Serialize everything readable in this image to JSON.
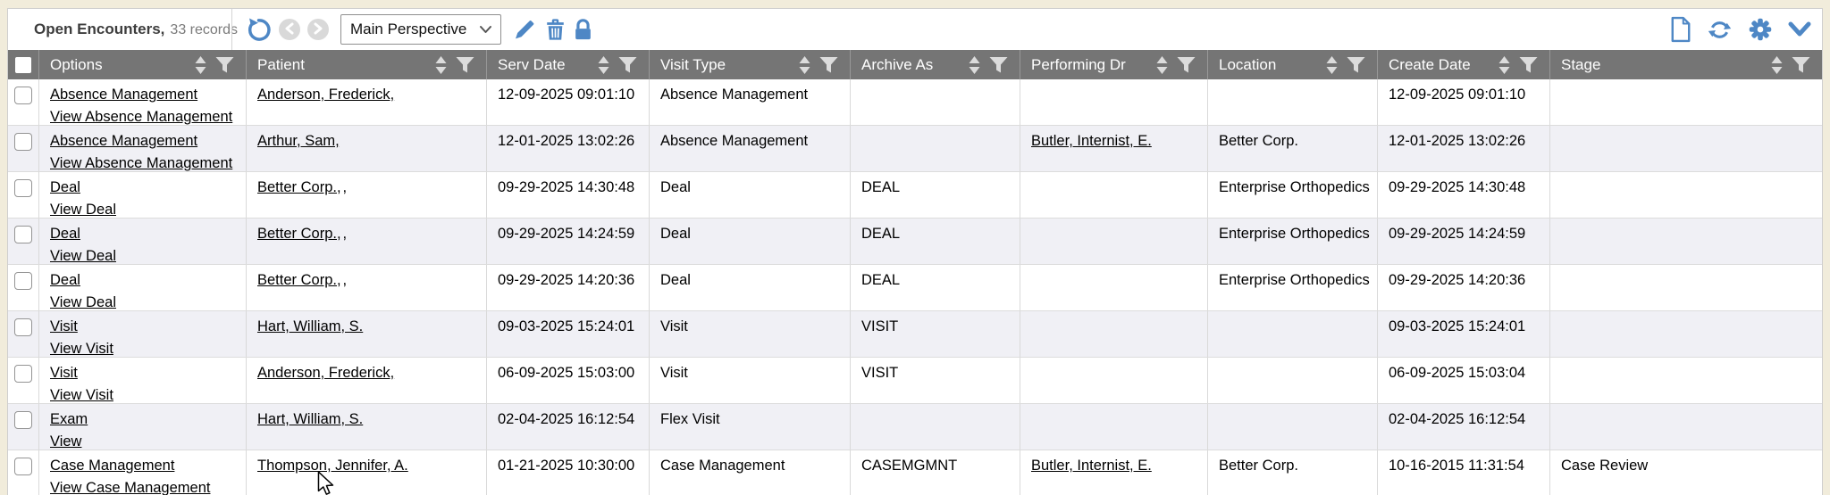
{
  "colors": {
    "accent_blue": "#4e87c5",
    "header_bg": "#757575",
    "row_alt_bg": "#f0f0f5",
    "page_bg": "#f1ecdb",
    "disabled_gray": "#d9d9d9"
  },
  "toolbar": {
    "title": "Open Encounters,",
    "record_count": "33 records",
    "perspective": {
      "selected": "Main Perspective"
    },
    "icons": {
      "reset": "reset-circular-arrow",
      "previous": "chevron-left-circle (disabled)",
      "next": "chevron-right-circle (disabled)",
      "edit": "pencil",
      "delete": "trash",
      "lock": "padlock",
      "new_document": "blank-page",
      "refresh": "circular-arrows",
      "settings": "gear",
      "collapse": "chevron-down"
    }
  },
  "table": {
    "columns": [
      {
        "key": "options",
        "label": "Options"
      },
      {
        "key": "patient",
        "label": "Patient"
      },
      {
        "key": "serv_date",
        "label": "Serv Date"
      },
      {
        "key": "visit_type",
        "label": "Visit Type"
      },
      {
        "key": "archive_as",
        "label": "Archive As"
      },
      {
        "key": "performing_dr",
        "label": "Performing Dr"
      },
      {
        "key": "location",
        "label": "Location"
      },
      {
        "key": "create_date",
        "label": "Create Date"
      },
      {
        "key": "stage",
        "label": "Stage"
      }
    ],
    "rows": [
      {
        "options_link": "Absence Management",
        "view_link": "View Absence Management",
        "patient": "Anderson, Frederick,",
        "patient_suffix": "",
        "serv_date": "12-09-2025 09:01:10",
        "visit_type": "Absence Management",
        "archive_as": "",
        "performing_dr": "",
        "location": "",
        "create_date": "12-09-2025 09:01:10",
        "stage": ""
      },
      {
        "options_link": "Absence Management",
        "view_link": "View Absence Management",
        "patient": "Arthur, Sam,",
        "patient_suffix": "",
        "serv_date": "12-01-2025 13:02:26",
        "visit_type": "Absence Management",
        "archive_as": "",
        "performing_dr": "Butler, Internist, E.",
        "location": "Better Corp.",
        "create_date": "12-01-2025 13:02:26",
        "stage": ""
      },
      {
        "options_link": "Deal",
        "view_link": "View Deal",
        "patient": "Better Corp.,",
        "patient_suffix": ",",
        "serv_date": "09-29-2025 14:30:48",
        "visit_type": "Deal",
        "archive_as": "DEAL",
        "performing_dr": "",
        "location": "Enterprise Orthopedics",
        "create_date": "09-29-2025 14:30:48",
        "stage": ""
      },
      {
        "options_link": "Deal",
        "view_link": "View Deal",
        "patient": "Better Corp.,",
        "patient_suffix": ",",
        "serv_date": "09-29-2025 14:24:59",
        "visit_type": "Deal",
        "archive_as": "DEAL",
        "performing_dr": "",
        "location": "Enterprise Orthopedics",
        "create_date": "09-29-2025 14:24:59",
        "stage": ""
      },
      {
        "options_link": "Deal",
        "view_link": "View Deal",
        "patient": "Better Corp.,",
        "patient_suffix": ",",
        "serv_date": "09-29-2025 14:20:36",
        "visit_type": "Deal",
        "archive_as": "DEAL",
        "performing_dr": "",
        "location": "Enterprise Orthopedics",
        "create_date": "09-29-2025 14:20:36",
        "stage": ""
      },
      {
        "options_link": "Visit",
        "view_link": "View Visit",
        "patient": "Hart, William, S.",
        "patient_suffix": "",
        "serv_date": "09-03-2025 15:24:01",
        "visit_type": "Visit",
        "archive_as": "VISIT",
        "performing_dr": "",
        "location": "",
        "create_date": "09-03-2025 15:24:01",
        "stage": ""
      },
      {
        "options_link": "Visit",
        "view_link": "View Visit",
        "patient": "Anderson, Frederick,",
        "patient_suffix": "",
        "serv_date": "06-09-2025 15:03:00",
        "visit_type": "Visit",
        "archive_as": "VISIT",
        "performing_dr": "",
        "location": "",
        "create_date": "06-09-2025 15:03:04",
        "stage": ""
      },
      {
        "options_link": "Exam",
        "view_link": "View",
        "patient": "Hart, William, S.",
        "patient_suffix": "",
        "serv_date": "02-04-2025 16:12:54",
        "visit_type": "Flex Visit",
        "archive_as": "",
        "performing_dr": "",
        "location": "",
        "create_date": "02-04-2025 16:12:54",
        "stage": ""
      },
      {
        "options_link": "Case Management",
        "view_link": "View Case Management",
        "patient": "Thompson, Jennifer, A.",
        "patient_suffix": "",
        "serv_date": "01-21-2025 10:30:00",
        "visit_type": "Case Management",
        "archive_as": "CASEMGMNT",
        "performing_dr": "Butler, Internist, E.",
        "location": "Better Corp.",
        "create_date": "10-16-2015 11:31:54",
        "stage": "Case Review"
      }
    ]
  }
}
